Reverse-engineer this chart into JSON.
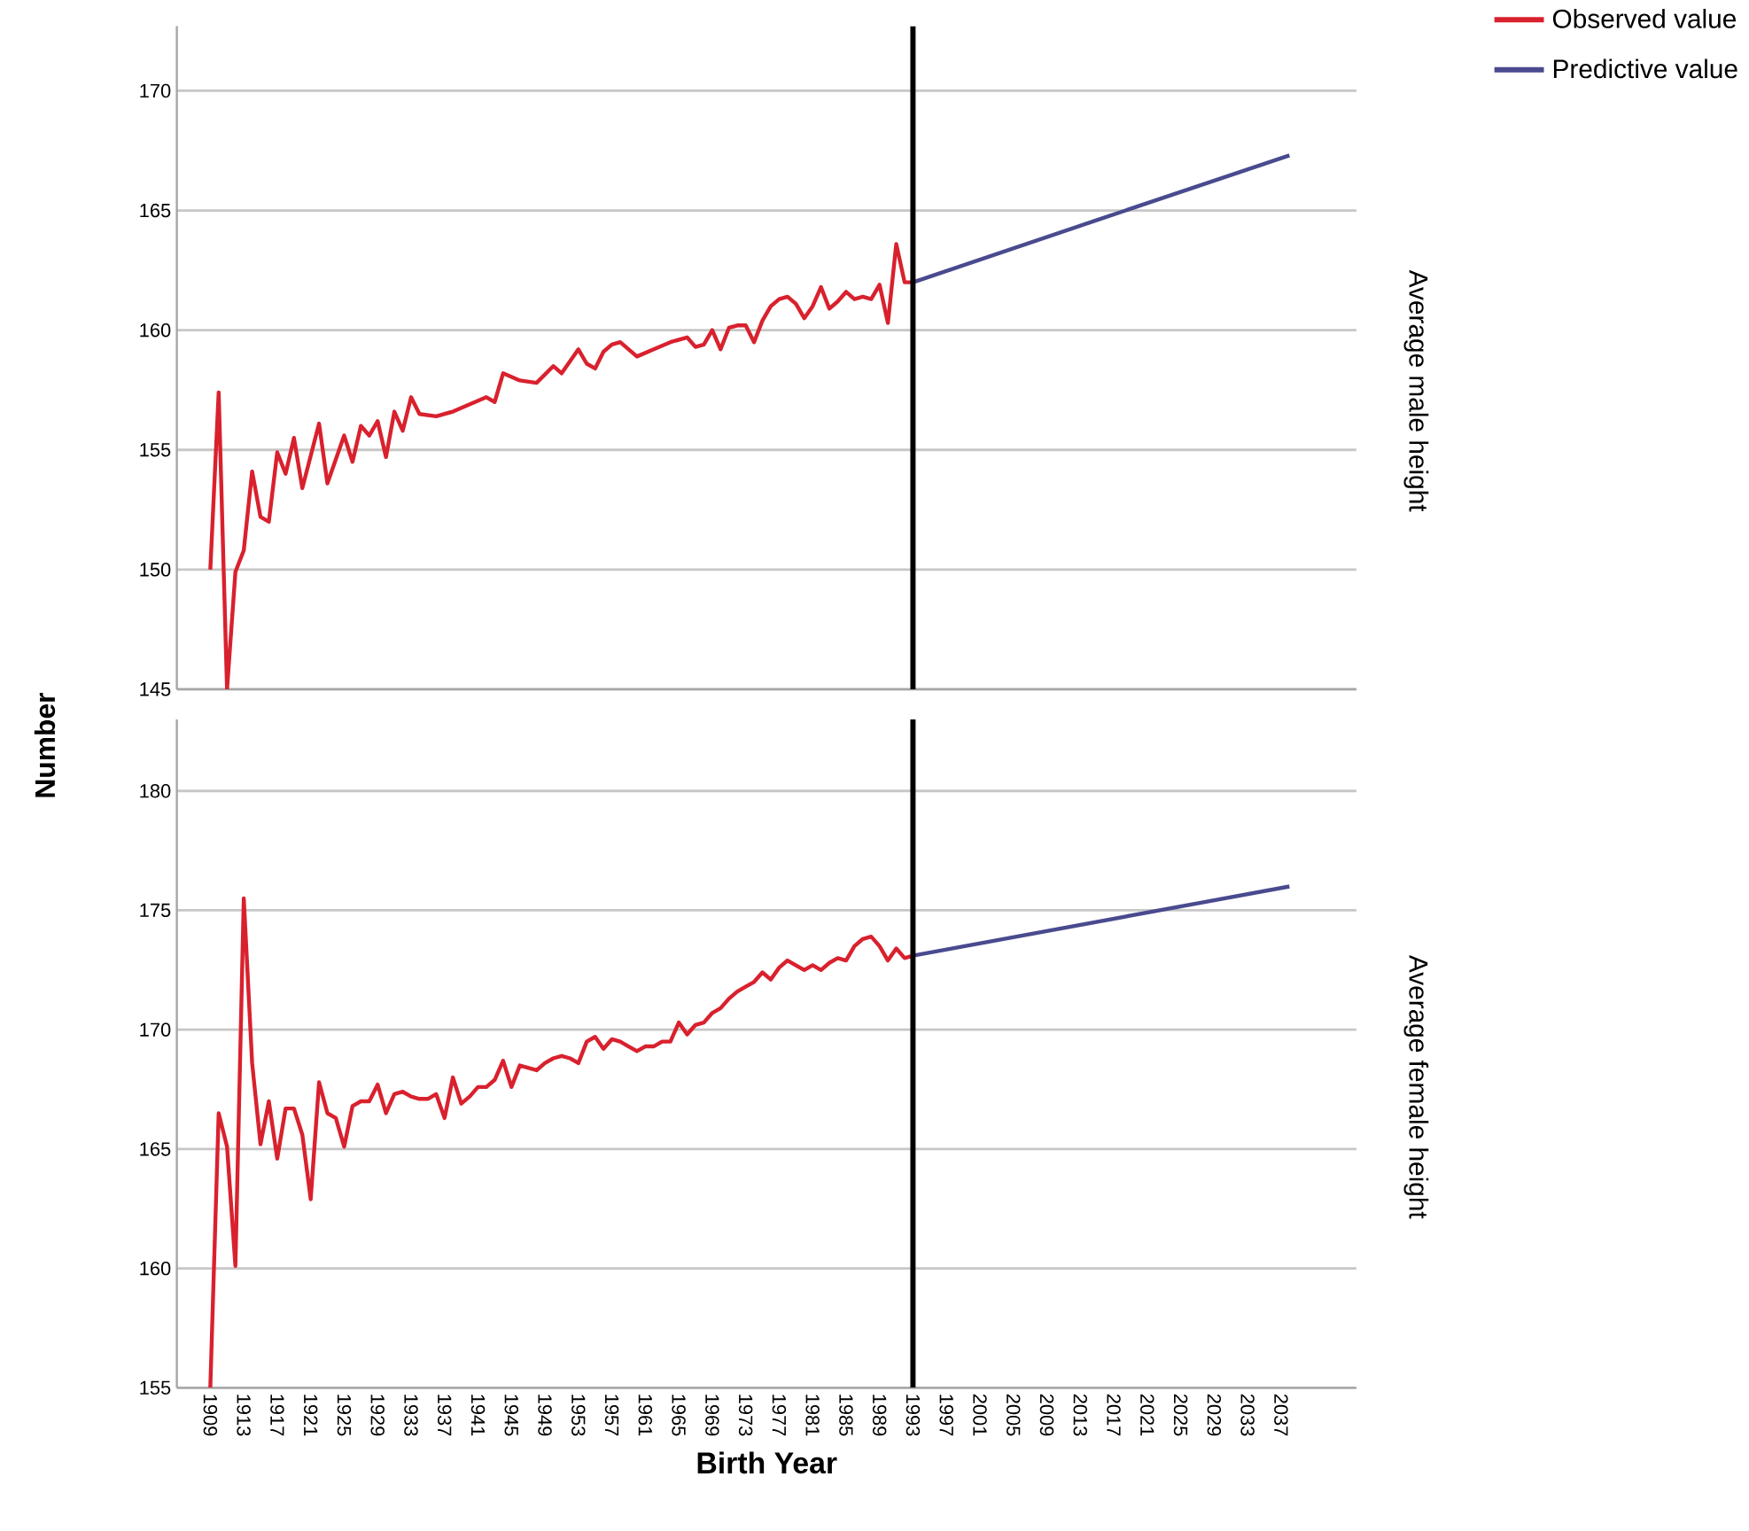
{
  "chart_data": [
    {
      "type": "line",
      "y2label": "Average male height",
      "ylabel": "Number",
      "xlim": [
        1905,
        2046
      ],
      "ylim": [
        145,
        172.7
      ],
      "xticks": [
        1909,
        1913,
        1917,
        1921,
        1925,
        1929,
        1933,
        1937,
        1941,
        1945,
        1949,
        1953,
        1957,
        1961,
        1965,
        1969,
        1973,
        1977,
        1981,
        1985,
        1989,
        1993,
        1997,
        2001,
        2005,
        2009,
        2013,
        2017,
        2021,
        2025,
        2029,
        2033,
        2037
      ],
      "yticks": [
        145,
        150,
        155,
        160,
        165,
        170
      ],
      "grid": "y",
      "legend": "top right",
      "tick_labels": "y",
      "ref_lines": [
        {
          "axis": "x",
          "value": 1993,
          "color": "#000000"
        }
      ],
      "series": [
        {
          "name": "Observed value",
          "color": "#d9212e",
          "x": [
            1909,
            1910,
            1911,
            1912,
            1913,
            1914,
            1915,
            1916,
            1917,
            1918,
            1919,
            1920,
            1922,
            1923,
            1925,
            1926,
            1927,
            1928,
            1929,
            1930,
            1931,
            1932,
            1933,
            1934,
            1936,
            1938,
            1940,
            1942,
            1943,
            1944,
            1946,
            1948,
            1950,
            1951,
            1952,
            1953,
            1954,
            1955,
            1956,
            1957,
            1958,
            1960,
            1962,
            1964,
            1966,
            1967,
            1968,
            1969,
            1970,
            1971,
            1972,
            1973,
            1974,
            1975,
            1976,
            1977,
            1978,
            1979,
            1980,
            1981,
            1982,
            1983,
            1984,
            1985,
            1986,
            1987,
            1988,
            1989,
            1990,
            1991,
            1992,
            1993
          ],
          "values": [
            150.0,
            157.4,
            145.0,
            149.9,
            150.8,
            154.1,
            152.2,
            152.0,
            154.9,
            154.0,
            155.5,
            153.4,
            156.1,
            153.6,
            155.6,
            154.5,
            156.0,
            155.6,
            156.2,
            154.7,
            156.6,
            155.8,
            157.2,
            156.5,
            156.4,
            156.6,
            156.9,
            157.2,
            157.0,
            158.2,
            157.9,
            157.8,
            158.5,
            158.2,
            158.7,
            159.2,
            158.6,
            158.4,
            159.1,
            159.4,
            159.5,
            158.9,
            159.2,
            159.5,
            159.7,
            159.3,
            159.4,
            160.0,
            159.2,
            160.1,
            160.2,
            160.2,
            159.5,
            160.4,
            161.0,
            161.3,
            161.4,
            161.1,
            160.5,
            161.0,
            161.8,
            160.9,
            161.2,
            161.6,
            161.3,
            161.4,
            161.3,
            161.9,
            160.3,
            163.6,
            162.0,
            162.0
          ]
        },
        {
          "name": "Predictive value",
          "color": "#4a4a8f",
          "x": [
            1993,
            2015,
            2038
          ],
          "values": [
            162.0,
            164.6,
            167.3
          ]
        }
      ]
    },
    {
      "type": "line",
      "y2label": "Average female height",
      "xlabel": "Birth Year",
      "xlim": [
        1905,
        2046
      ],
      "ylim": [
        155,
        183
      ],
      "xticks": [
        1909,
        1913,
        1917,
        1921,
        1925,
        1929,
        1933,
        1937,
        1941,
        1945,
        1949,
        1953,
        1957,
        1961,
        1965,
        1969,
        1973,
        1977,
        1981,
        1985,
        1989,
        1993,
        1997,
        2001,
        2005,
        2009,
        2013,
        2017,
        2021,
        2025,
        2029,
        2033,
        2037
      ],
      "yticks": [
        155,
        160,
        165,
        170,
        175,
        180
      ],
      "grid": "y",
      "ref_lines": [
        {
          "axis": "x",
          "value": 1993,
          "color": "#000000"
        }
      ],
      "series": [
        {
          "color": "#d9212e",
          "x": [
            1909,
            1910,
            1911,
            1912,
            1913,
            1914,
            1915,
            1916,
            1917,
            1918,
            1919,
            1920,
            1921,
            1922,
            1923,
            1924,
            1925,
            1926,
            1927,
            1928,
            1929,
            1930,
            1931,
            1932,
            1933,
            1934,
            1935,
            1936,
            1937,
            1938,
            1939,
            1940,
            1941,
            1942,
            1943,
            1944,
            1945,
            1946,
            1947,
            1948,
            1949,
            1950,
            1951,
            1952,
            1953,
            1954,
            1955,
            1956,
            1957,
            1958,
            1959,
            1960,
            1961,
            1962,
            1963,
            1964,
            1965,
            1966,
            1967,
            1968,
            1969,
            1970,
            1971,
            1972,
            1973,
            1974,
            1975,
            1976,
            1977,
            1978,
            1979,
            1980,
            1981,
            1982,
            1983,
            1984,
            1985,
            1986,
            1987,
            1988,
            1989,
            1990,
            1991,
            1992,
            1993
          ],
          "values": [
            155.0,
            166.5,
            165.1,
            160.1,
            175.5,
            168.6,
            165.2,
            167.0,
            164.6,
            166.7,
            166.7,
            165.6,
            162.9,
            167.8,
            166.5,
            166.3,
            165.1,
            166.8,
            167.0,
            167.0,
            167.7,
            166.5,
            167.3,
            167.4,
            167.2,
            167.1,
            167.1,
            167.3,
            166.3,
            168.0,
            166.9,
            167.2,
            167.6,
            167.6,
            167.9,
            168.7,
            167.6,
            168.5,
            168.4,
            168.3,
            168.6,
            168.8,
            168.9,
            168.8,
            168.6,
            169.5,
            169.7,
            169.2,
            169.6,
            169.5,
            169.3,
            169.1,
            169.3,
            169.3,
            169.5,
            169.5,
            170.3,
            169.8,
            170.2,
            170.3,
            170.7,
            170.9,
            171.3,
            171.6,
            171.8,
            172.0,
            172.4,
            172.1,
            172.6,
            172.9,
            172.7,
            172.5,
            172.7,
            172.5,
            172.8,
            173.0,
            172.9,
            173.5,
            173.8,
            173.9,
            173.5,
            172.9,
            173.4,
            173.0,
            173.1
          ]
        },
        {
          "color": "#4a4a8f",
          "x": [
            1993,
            2038
          ],
          "values": [
            173.1,
            176.0
          ]
        }
      ]
    }
  ]
}
